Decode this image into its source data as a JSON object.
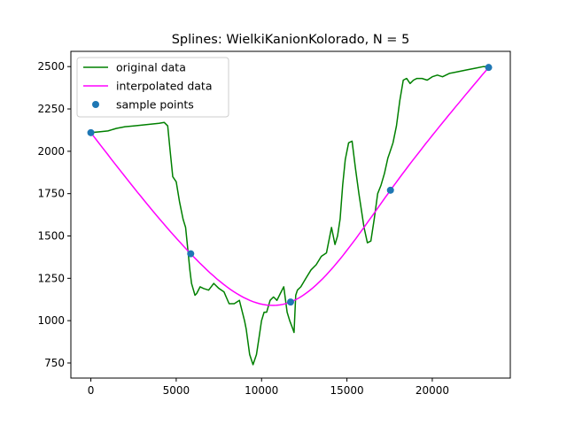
{
  "chart_data": {
    "type": "line",
    "title": "Splines: WielkiKanionKolorado, N = 5",
    "xlabel": "",
    "ylabel": "",
    "xlim": [
      -1170,
      24570
    ],
    "ylim": [
      661,
      2590
    ],
    "xticks": [
      0,
      5000,
      10000,
      15000,
      20000
    ],
    "yticks": [
      750,
      1000,
      1250,
      1500,
      1750,
      2000,
      2250,
      2500
    ],
    "grid": false,
    "legend_position": "top-left",
    "series": [
      {
        "name": "original data",
        "kind": "line",
        "color": "#008000",
        "x": [
          0,
          500,
          1000,
          1500,
          2000,
          2500,
          3000,
          3500,
          4000,
          4300,
          4500,
          4650,
          4800,
          5000,
          5200,
          5400,
          5550,
          5700,
          5800,
          5900,
          6100,
          6200,
          6400,
          6600,
          6900,
          7200,
          7500,
          7800,
          8100,
          8400,
          8700,
          9000,
          9100,
          9300,
          9500,
          9700,
          9850,
          10000,
          10150,
          10300,
          10500,
          10700,
          10900,
          11100,
          11300,
          11500,
          11650,
          11800,
          11900,
          12000,
          12100,
          12300,
          12600,
          12900,
          13200,
          13500,
          13800,
          14100,
          14300,
          14450,
          14600,
          14750,
          14900,
          15100,
          15300,
          15500,
          15700,
          15850,
          16000,
          16200,
          16400,
          16600,
          16800,
          17000,
          17200,
          17400,
          17500,
          17700,
          17900,
          18100,
          18300,
          18500,
          18700,
          18900,
          19100,
          19400,
          19700,
          20000,
          20300,
          20600,
          21000,
          21500,
          22000,
          22500,
          23000,
          23300
        ],
        "y": [
          2110,
          2115,
          2120,
          2135,
          2145,
          2150,
          2155,
          2160,
          2165,
          2170,
          2150,
          2000,
          1850,
          1820,
          1700,
          1600,
          1550,
          1400,
          1300,
          1220,
          1150,
          1160,
          1200,
          1190,
          1180,
          1220,
          1190,
          1170,
          1100,
          1100,
          1120,
          1000,
          950,
          800,
          740,
          800,
          900,
          1000,
          1050,
          1050,
          1120,
          1140,
          1120,
          1160,
          1200,
          1050,
          1000,
          960,
          930,
          1150,
          1180,
          1200,
          1250,
          1300,
          1330,
          1380,
          1400,
          1550,
          1450,
          1500,
          1600,
          1800,
          1950,
          2050,
          2060,
          1900,
          1750,
          1650,
          1550,
          1460,
          1470,
          1600,
          1750,
          1800,
          1870,
          1960,
          1990,
          2050,
          2150,
          2300,
          2420,
          2430,
          2400,
          2420,
          2430,
          2430,
          2420,
          2440,
          2450,
          2440,
          2460,
          2470,
          2480,
          2490,
          2500,
          2500
        ]
      },
      {
        "name": "interpolated data",
        "kind": "spline",
        "color": "#ff00ff",
        "x": [
          0,
          5850,
          11700,
          17550,
          23300
        ],
        "y": [
          2110,
          1395,
          1110,
          1770,
          2495
        ]
      },
      {
        "name": "sample points",
        "kind": "markers",
        "color": "#1f77b4",
        "x": [
          0,
          5850,
          11700,
          17550,
          23300
        ],
        "y": [
          2110,
          1395,
          1110,
          1770,
          2495
        ]
      }
    ]
  }
}
